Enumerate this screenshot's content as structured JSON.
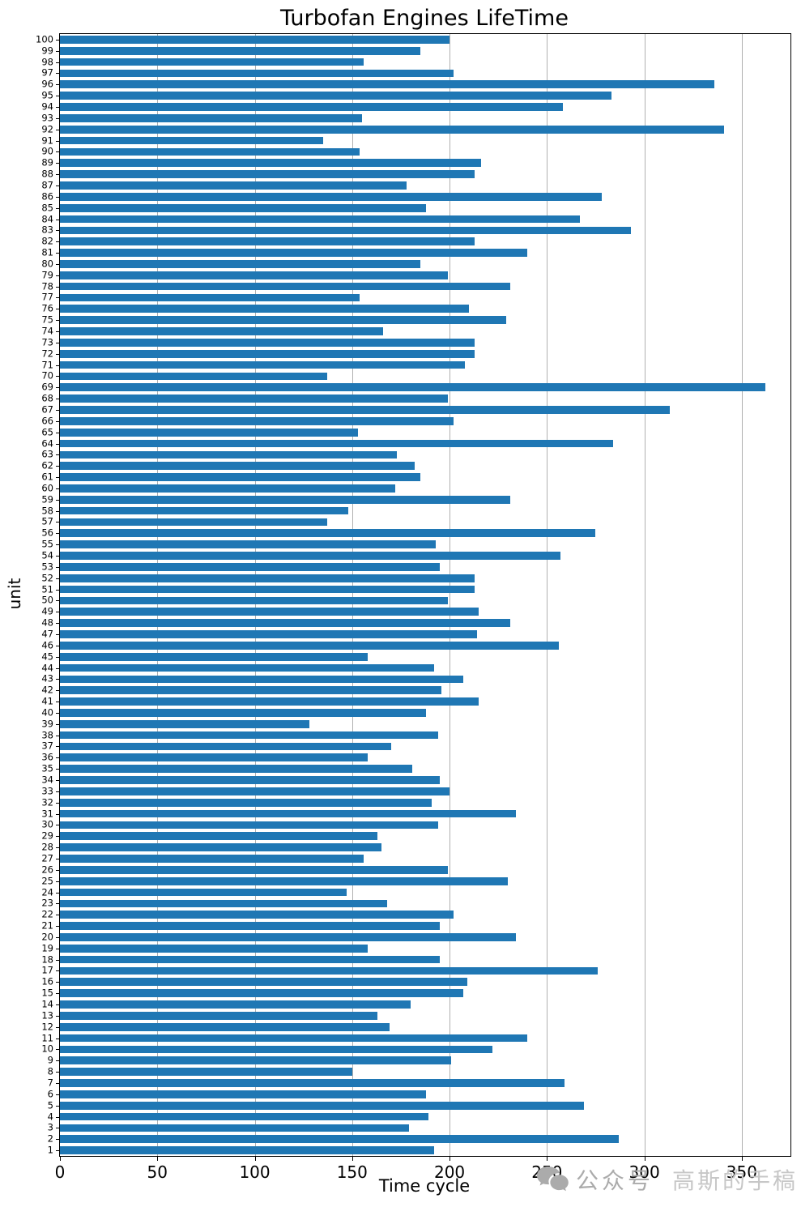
{
  "title": "Turbofan Engines LifeTime",
  "watermark": {
    "icon": "wechat-icon",
    "brand_prefix": "公众号",
    "brand_name": "高斯的手稿",
    "color_prefix": "#ababab",
    "color_name": "#c7c7c7"
  },
  "chart_data": {
    "type": "bar",
    "orientation": "horizontal",
    "title": "Turbofan Engines LifeTime",
    "xlabel": "Time cycle",
    "ylabel": "unit",
    "xlim": [
      0,
      375
    ],
    "xticks": [
      0,
      50,
      100,
      150,
      200,
      250,
      300,
      350
    ],
    "grid": "vertical-only",
    "legend": "none",
    "bar_color": "#1f77b4",
    "grid_color": "#b0b0b0",
    "categories": [
      1,
      2,
      3,
      4,
      5,
      6,
      7,
      8,
      9,
      10,
      11,
      12,
      13,
      14,
      15,
      16,
      17,
      18,
      19,
      20,
      21,
      22,
      23,
      24,
      25,
      26,
      27,
      28,
      29,
      30,
      31,
      32,
      33,
      34,
      35,
      36,
      37,
      38,
      39,
      40,
      41,
      42,
      43,
      44,
      45,
      46,
      47,
      48,
      49,
      50,
      51,
      52,
      53,
      54,
      55,
      56,
      57,
      58,
      59,
      60,
      61,
      62,
      63,
      64,
      65,
      66,
      67,
      68,
      69,
      70,
      71,
      72,
      73,
      74,
      75,
      76,
      77,
      78,
      79,
      80,
      81,
      82,
      83,
      84,
      85,
      86,
      87,
      88,
      89,
      90,
      91,
      92,
      93,
      94,
      95,
      96,
      97,
      98,
      99,
      100
    ],
    "values": [
      192,
      287,
      179,
      189,
      269,
      188,
      259,
      150,
      201,
      222,
      240,
      169,
      163,
      180,
      207,
      209,
      276,
      195,
      158,
      234,
      195,
      202,
      168,
      147,
      230,
      199,
      156,
      165,
      163,
      194,
      234,
      191,
      200,
      195,
      181,
      158,
      170,
      194,
      128,
      188,
      215,
      196,
      207,
      192,
      158,
      256,
      214,
      231,
      215,
      199,
      213,
      213,
      195,
      257,
      193,
      275,
      137,
      148,
      231,
      172,
      185,
      182,
      173,
      284,
      153,
      202,
      313,
      199,
      362,
      137,
      208,
      213,
      213,
      166,
      229,
      210,
      154,
      231,
      199,
      185,
      240,
      213,
      293,
      267,
      188,
      278,
      178,
      213,
      216,
      154,
      135,
      341,
      155,
      258,
      283,
      336,
      202,
      156,
      185,
      200
    ],
    "category_order_top_to_bottom": "100 at top, 1 at bottom"
  }
}
